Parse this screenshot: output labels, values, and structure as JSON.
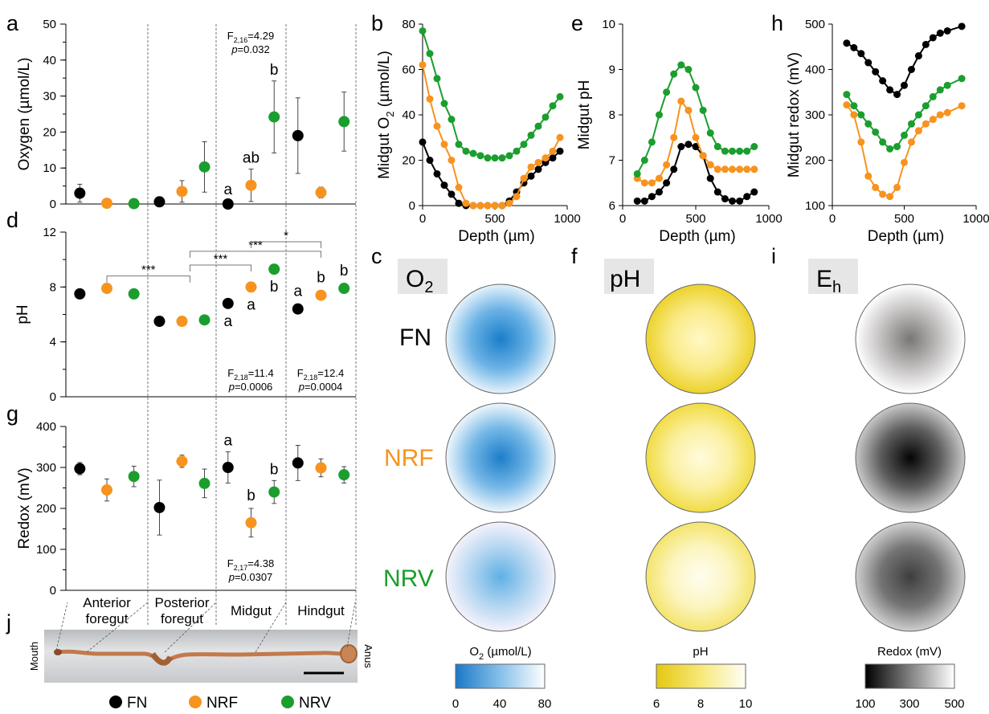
{
  "panel_letters": {
    "a": "a",
    "b": "b",
    "c": "c",
    "d": "d",
    "e": "e",
    "f": "f",
    "g": "g",
    "h": "h",
    "i": "i",
    "j": "j"
  },
  "colors": {
    "FN": "#000000",
    "NRF": "#f7931e",
    "NRV": "#1a9e2e"
  },
  "legend": [
    {
      "key": "FN",
      "label": "FN"
    },
    {
      "key": "NRF",
      "label": "NRF"
    },
    {
      "key": "NRV",
      "label": "NRV"
    }
  ],
  "gut_regions": [
    {
      "line1": "Anterior",
      "line2": "foregut"
    },
    {
      "line1": "Posterior",
      "line2": "foregut"
    },
    {
      "line1": "Midgut",
      "line2": ""
    },
    {
      "line1": "Hindgut",
      "line2": ""
    }
  ],
  "chart_data": [
    {
      "id": "a",
      "type": "scatter",
      "ylabel_main": "Oxygen (",
      "ylabel_unit": "µmol/L",
      "ylabel_end": ")",
      "ylim": [
        0,
        50
      ],
      "yticks": [
        0,
        10,
        20,
        30,
        40,
        50
      ],
      "series": [
        {
          "name": "FN",
          "values": [
            3,
            0.6,
            0,
            19
          ],
          "err": [
            2.5,
            0.4,
            0,
            10.5
          ]
        },
        {
          "name": "NRF",
          "values": [
            0.2,
            3.5,
            5.2,
            3.2
          ],
          "err": [
            0.2,
            3,
            4.5,
            1.5
          ]
        },
        {
          "name": "NRV",
          "values": [
            0.1,
            10.3,
            24.2,
            22.9
          ],
          "err": [
            0.1,
            7,
            10,
            8.2
          ]
        }
      ],
      "letters": [
        {
          "region": 2,
          "series": "FN",
          "text": "a"
        },
        {
          "region": 2,
          "series": "NRF",
          "text": "ab"
        },
        {
          "region": 2,
          "series": "NRV",
          "text": "b"
        }
      ],
      "stat": {
        "f_main": "F",
        "f_sub": "2,16",
        "f_val": "=4.29",
        "p_label": "p",
        "p_val": "=0.032"
      }
    },
    {
      "id": "d",
      "type": "scatter",
      "ylabel_main": "pH",
      "ylim": [
        0,
        12
      ],
      "yticks": [
        0,
        4,
        8,
        12
      ],
      "series": [
        {
          "name": "FN",
          "values": [
            7.5,
            5.5,
            6.8,
            6.4
          ],
          "err": [
            0.1,
            0.1,
            0.3,
            0.1
          ]
        },
        {
          "name": "NRF",
          "values": [
            7.9,
            5.5,
            8.0,
            7.4
          ],
          "err": [
            0.1,
            0.1,
            0.35,
            0.2
          ]
        },
        {
          "name": "NRV",
          "values": [
            7.5,
            5.6,
            9.3,
            7.9
          ],
          "err": [
            0.1,
            0.1,
            0.15,
            0.1
          ]
        }
      ],
      "letters": [
        {
          "region": 2,
          "series": "FN",
          "text": "a"
        },
        {
          "region": 2,
          "series": "NRF",
          "text": "a"
        },
        {
          "region": 2,
          "series": "NRV",
          "text": "b"
        },
        {
          "region": 3,
          "series": "FN",
          "text": "a"
        },
        {
          "region": 3,
          "series": "NRF",
          "text": "b"
        },
        {
          "region": 3,
          "series": "NRV",
          "text": "b"
        }
      ],
      "sig": [
        {
          "label": "***",
          "y": 8.8
        },
        {
          "label": "***",
          "y": 9.6
        },
        {
          "label": "***",
          "y": 10.6
        },
        {
          "label": "*",
          "y": 11.3
        }
      ],
      "stats": [
        {
          "f_main": "F",
          "f_sub": "2,18",
          "f_val": "=11.4",
          "p_label": "p",
          "p_val": "=0.0006"
        },
        {
          "f_main": "F",
          "f_sub": "2,18",
          "f_val": "=12.4",
          "p_label": "p",
          "p_val": "=0.0004"
        }
      ]
    },
    {
      "id": "g",
      "type": "scatter",
      "ylabel_main": "Redox (mV)",
      "ylim": [
        0,
        400
      ],
      "yticks": [
        0,
        100,
        200,
        300,
        400
      ],
      "series": [
        {
          "name": "FN",
          "values": [
            297,
            202,
            300,
            311
          ],
          "err": [
            15,
            67,
            38,
            43
          ]
        },
        {
          "name": "NRF",
          "values": [
            245,
            315,
            165,
            299
          ],
          "err": [
            27,
            15,
            35,
            22
          ]
        },
        {
          "name": "NRV",
          "values": [
            278,
            261,
            240,
            282
          ],
          "err": [
            25,
            35,
            28,
            20
          ]
        }
      ],
      "letters": [
        {
          "region": 2,
          "series": "FN",
          "text": "a"
        },
        {
          "region": 2,
          "series": "NRF",
          "text": "b"
        },
        {
          "region": 2,
          "series": "NRV",
          "text": "b"
        }
      ],
      "stat": {
        "f_main": "F",
        "f_sub": "2,17",
        "f_val": "=4.38",
        "p_label": "p",
        "p_val": "=0.0307"
      }
    },
    {
      "id": "b",
      "type": "line",
      "ylabel_a": "Midgut O",
      "ylabel_sub": "2",
      "ylabel_b": " (µmol/L)",
      "xlabel": "Depth (µm)",
      "xlim": [
        0,
        1000
      ],
      "xticks": [
        0,
        500,
        1000
      ],
      "ylim": [
        0,
        80
      ],
      "yticks": [
        0,
        20,
        40,
        60,
        80
      ],
      "x": [
        0,
        50,
        100,
        150,
        200,
        250,
        300,
        350,
        400,
        450,
        500,
        550,
        600,
        650,
        700,
        750,
        800,
        850,
        900,
        950
      ],
      "series": [
        {
          "name": "FN",
          "values": [
            28,
            20,
            14,
            9,
            5,
            1,
            0,
            0,
            0,
            0,
            0,
            0,
            2,
            6,
            10,
            13,
            16,
            19,
            21,
            24
          ]
        },
        {
          "name": "NRF",
          "values": [
            62,
            47,
            35,
            27,
            20,
            8,
            1,
            0,
            0,
            0,
            0,
            0,
            1,
            4,
            12,
            17,
            19,
            21,
            24,
            30
          ]
        },
        {
          "name": "NRV",
          "values": [
            77,
            67,
            56,
            45,
            38,
            27,
            24,
            23,
            22,
            21,
            21,
            21,
            22,
            24,
            27,
            31,
            35,
            39,
            44,
            48
          ]
        }
      ]
    },
    {
      "id": "e",
      "type": "line",
      "ylabel": "Midgut pH",
      "xlabel": "Depth (µm)",
      "xlim": [
        0,
        1000
      ],
      "xticks": [
        0,
        500,
        1000
      ],
      "ylim": [
        6,
        10
      ],
      "yticks": [
        6,
        7,
        8,
        9,
        10
      ],
      "x": [
        100,
        150,
        200,
        250,
        300,
        350,
        400,
        450,
        500,
        550,
        600,
        650,
        700,
        750,
        800,
        850,
        900
      ],
      "series": [
        {
          "name": "FN",
          "values": [
            6.1,
            6.1,
            6.2,
            6.3,
            6.5,
            6.8,
            7.3,
            7.35,
            7.3,
            7.1,
            6.6,
            6.3,
            6.15,
            6.1,
            6.1,
            6.2,
            6.3
          ]
        },
        {
          "name": "NRF",
          "values": [
            6.6,
            6.5,
            6.5,
            6.6,
            6.9,
            7.5,
            8.3,
            8.1,
            7.5,
            7.1,
            6.9,
            6.8,
            6.8,
            6.8,
            6.8,
            6.8,
            6.8
          ]
        },
        {
          "name": "NRV",
          "values": [
            6.7,
            7.0,
            7.4,
            8.0,
            8.5,
            8.9,
            9.1,
            9.0,
            8.6,
            8.1,
            7.6,
            7.3,
            7.2,
            7.2,
            7.2,
            7.2,
            7.3
          ]
        }
      ]
    },
    {
      "id": "h",
      "type": "line",
      "ylabel": "Midgut redox (mV)",
      "xlabel": "Depth (µm)",
      "xlim": [
        0,
        1000
      ],
      "xticks": [
        0,
        500,
        1000
      ],
      "ylim": [
        100,
        500
      ],
      "yticks": [
        100,
        200,
        300,
        400,
        500
      ],
      "x": [
        100,
        150,
        200,
        250,
        300,
        350,
        400,
        450,
        500,
        550,
        600,
        650,
        700,
        750,
        800,
        900
      ],
      "series": [
        {
          "name": "FN",
          "values": [
            458,
            448,
            435,
            415,
            395,
            375,
            355,
            345,
            365,
            400,
            430,
            455,
            470,
            480,
            485,
            495
          ]
        },
        {
          "name": "NRF",
          "values": [
            322,
            300,
            240,
            165,
            140,
            125,
            120,
            140,
            195,
            240,
            265,
            280,
            290,
            300,
            305,
            320
          ]
        },
        {
          "name": "NRV",
          "values": [
            345,
            320,
            300,
            280,
            262,
            240,
            225,
            230,
            255,
            280,
            300,
            320,
            340,
            355,
            365,
            380
          ]
        }
      ]
    }
  ],
  "maps": [
    {
      "id": "c",
      "title_main": "O",
      "title_sub": "2",
      "cbar_main": "O",
      "cbar_sub": "2",
      "cbar_end": " (µmol/L)",
      "ticks": [
        "0",
        "40",
        "80"
      ]
    },
    {
      "id": "f",
      "title_main": "pH",
      "title_sub": "",
      "cbar_main": "pH",
      "cbar_sub": "",
      "cbar_end": "",
      "ticks": [
        "6",
        "8",
        "10"
      ]
    },
    {
      "id": "i",
      "title_main": "E",
      "title_sub": "h",
      "cbar_main": "Redox (mV)",
      "cbar_sub": "",
      "cbar_end": "",
      "ticks": [
        "100",
        "300",
        "500"
      ]
    }
  ],
  "row_labels": [
    "FN",
    "NRF",
    "NRV"
  ],
  "gut_photo": {
    "mouth": "Mouth",
    "anus": "Anus"
  }
}
